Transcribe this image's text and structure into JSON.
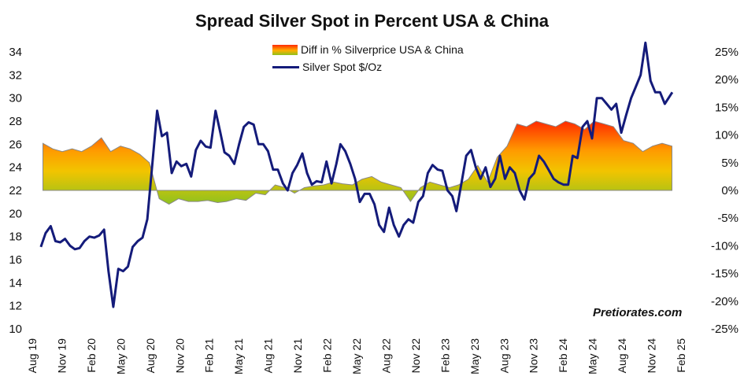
{
  "title": "Spread Silver Spot in Percent USA & China",
  "watermark": "Pretiorates.com",
  "legend": {
    "area_label": "Diff in % Silverprice USA & China",
    "line_label": "Silver Spot  $/Oz"
  },
  "colors": {
    "line": "#141b7a",
    "area_high": "#ff2a00",
    "area_mid": "#ffb000",
    "area_low": "#8ec21f",
    "area_outline": "#888888"
  },
  "chart_data": {
    "type": "line",
    "title": "Spread Silver Spot in Percent USA & China",
    "x_tick_labels": [
      "Aug 19",
      "Nov 19",
      "Feb 20",
      "May 20",
      "Aug 20",
      "Nov 20",
      "Feb 21",
      "May 21",
      "Aug 21",
      "Nov 21",
      "Feb 22",
      "May 22",
      "Aug 22",
      "Nov 22",
      "Feb 23",
      "May 23",
      "Aug 23",
      "Nov 23",
      "Feb 24",
      "May 24",
      "Aug 24",
      "Nov 24",
      "Feb 25"
    ],
    "y_left": {
      "range": [
        10,
        34
      ],
      "ticks": [
        10,
        12,
        14,
        16,
        18,
        20,
        22,
        24,
        26,
        28,
        30,
        32,
        34
      ]
    },
    "y_right": {
      "range": [
        -25,
        25
      ],
      "ticks": [
        "-25%",
        "-20%",
        "-15%",
        "-10%",
        "-5%",
        "0%",
        "5%",
        "10%",
        "15%",
        "20%",
        "25%"
      ]
    },
    "grid": false,
    "legend_position": "top-center",
    "series": [
      {
        "name": "Silver Spot  $/Oz",
        "type": "line",
        "axis": "left",
        "points": [
          [
            "2019-08",
            17.1
          ],
          [
            "2019-08",
            18.3
          ],
          [
            "2019-09",
            18.9
          ],
          [
            "2019-09",
            17.6
          ],
          [
            "2019-10",
            17.5
          ],
          [
            "2019-10",
            17.8
          ],
          [
            "2019-11",
            17.2
          ],
          [
            "2019-11",
            16.9
          ],
          [
            "2019-12",
            17.0
          ],
          [
            "2019-12",
            17.6
          ],
          [
            "2020-01",
            18.0
          ],
          [
            "2020-01",
            17.9
          ],
          [
            "2020-02",
            18.1
          ],
          [
            "2020-02",
            18.6
          ],
          [
            "2020-03",
            15.0
          ],
          [
            "2020-03",
            11.9
          ],
          [
            "2020-04",
            15.2
          ],
          [
            "2020-04",
            15.0
          ],
          [
            "2020-05",
            15.4
          ],
          [
            "2020-05",
            17.1
          ],
          [
            "2020-06",
            17.6
          ],
          [
            "2020-06",
            17.9
          ],
          [
            "2020-07",
            19.5
          ],
          [
            "2020-07",
            24.0
          ],
          [
            "2020-08",
            28.9
          ],
          [
            "2020-08",
            26.7
          ],
          [
            "2020-09",
            27.0
          ],
          [
            "2020-09",
            23.5
          ],
          [
            "2020-10",
            24.5
          ],
          [
            "2020-10",
            24.1
          ],
          [
            "2020-11",
            24.3
          ],
          [
            "2020-11",
            23.2
          ],
          [
            "2020-12",
            25.5
          ],
          [
            "2020-12",
            26.3
          ],
          [
            "2021-01",
            25.8
          ],
          [
            "2021-01",
            25.7
          ],
          [
            "2021-02",
            28.9
          ],
          [
            "2021-02",
            27.0
          ],
          [
            "2021-03",
            25.3
          ],
          [
            "2021-03",
            25.0
          ],
          [
            "2021-04",
            24.3
          ],
          [
            "2021-04",
            26.0
          ],
          [
            "2021-05",
            27.5
          ],
          [
            "2021-05",
            27.9
          ],
          [
            "2021-06",
            27.7
          ],
          [
            "2021-06",
            26.0
          ],
          [
            "2021-07",
            26.0
          ],
          [
            "2021-07",
            25.4
          ],
          [
            "2021-08",
            23.8
          ],
          [
            "2021-08",
            23.8
          ],
          [
            "2021-09",
            22.6
          ],
          [
            "2021-09",
            22.0
          ],
          [
            "2021-10",
            23.5
          ],
          [
            "2021-10",
            24.2
          ],
          [
            "2021-11",
            25.2
          ],
          [
            "2021-11",
            23.5
          ],
          [
            "2021-12",
            22.5
          ],
          [
            "2021-12",
            22.8
          ],
          [
            "2022-01",
            22.7
          ],
          [
            "2022-01",
            24.5
          ],
          [
            "2022-02",
            22.6
          ],
          [
            "2022-02",
            24.3
          ],
          [
            "2022-03",
            26.0
          ],
          [
            "2022-03",
            25.4
          ],
          [
            "2022-04",
            24.3
          ],
          [
            "2022-04",
            23.0
          ],
          [
            "2022-05",
            21.0
          ],
          [
            "2022-05",
            21.7
          ],
          [
            "2022-06",
            21.7
          ],
          [
            "2022-06",
            20.8
          ],
          [
            "2022-07",
            19.0
          ],
          [
            "2022-07",
            18.4
          ],
          [
            "2022-08",
            20.5
          ],
          [
            "2022-08",
            19.0
          ],
          [
            "2022-09",
            18.0
          ],
          [
            "2022-09",
            19.0
          ],
          [
            "2022-10",
            19.5
          ],
          [
            "2022-10",
            19.2
          ],
          [
            "2022-11",
            21.0
          ],
          [
            "2022-11",
            21.5
          ],
          [
            "2022-12",
            23.5
          ],
          [
            "2022-12",
            24.2
          ],
          [
            "2023-01",
            23.8
          ],
          [
            "2023-01",
            23.7
          ],
          [
            "2023-02",
            22.0
          ],
          [
            "2023-02",
            21.5
          ],
          [
            "2023-03",
            20.2
          ],
          [
            "2023-03",
            22.5
          ],
          [
            "2023-04",
            25.0
          ],
          [
            "2023-04",
            25.5
          ],
          [
            "2023-05",
            24.0
          ],
          [
            "2023-05",
            23.0
          ],
          [
            "2023-06",
            24.0
          ],
          [
            "2023-06",
            22.3
          ],
          [
            "2023-07",
            23.0
          ],
          [
            "2023-07",
            25.0
          ],
          [
            "2023-08",
            23.0
          ],
          [
            "2023-08",
            24.0
          ],
          [
            "2023-09",
            23.5
          ],
          [
            "2023-09",
            22.0
          ],
          [
            "2023-10",
            21.2
          ],
          [
            "2023-10",
            23.0
          ],
          [
            "2023-11",
            23.5
          ],
          [
            "2023-11",
            25.0
          ],
          [
            "2023-12",
            24.5
          ],
          [
            "2023-12",
            23.8
          ],
          [
            "2024-01",
            23.0
          ],
          [
            "2024-01",
            22.7
          ],
          [
            "2024-02",
            22.5
          ],
          [
            "2024-02",
            22.5
          ],
          [
            "2024-03",
            25.0
          ],
          [
            "2024-03",
            24.8
          ],
          [
            "2024-04",
            27.5
          ],
          [
            "2024-04",
            28.0
          ],
          [
            "2024-05",
            26.5
          ],
          [
            "2024-05",
            30.0
          ],
          [
            "2024-06",
            30.0
          ],
          [
            "2024-06",
            29.5
          ],
          [
            "2024-07",
            29.0
          ],
          [
            "2024-07",
            29.5
          ],
          [
            "2024-08",
            27.0
          ],
          [
            "2024-08",
            28.5
          ],
          [
            "2024-09",
            30.0
          ],
          [
            "2024-09",
            31.0
          ],
          [
            "2024-10",
            32.0
          ],
          [
            "2024-10",
            34.8
          ],
          [
            "2024-11",
            31.5
          ],
          [
            "2024-11",
            30.5
          ],
          [
            "2024-12",
            30.5
          ],
          [
            "2024-12",
            29.5
          ],
          [
            "2025-01",
            30.5
          ]
        ]
      },
      {
        "name": "Diff in % Silverprice USA & China",
        "type": "area",
        "axis": "right",
        "points": [
          [
            "2019-08",
            8.5
          ],
          [
            "2019-09",
            7.5
          ],
          [
            "2019-10",
            7.0
          ],
          [
            "2019-11",
            7.5
          ],
          [
            "2019-12",
            7.0
          ],
          [
            "2020-01",
            8.0
          ],
          [
            "2020-02",
            9.5
          ],
          [
            "2020-03",
            7.0
          ],
          [
            "2020-04",
            8.0
          ],
          [
            "2020-05",
            7.5
          ],
          [
            "2020-06",
            6.5
          ],
          [
            "2020-07",
            5.0
          ],
          [
            "2020-08",
            -1.5
          ],
          [
            "2020-09",
            -2.5
          ],
          [
            "2020-10",
            -1.5
          ],
          [
            "2020-11",
            -2.0
          ],
          [
            "2020-12",
            -2.0
          ],
          [
            "2021-01",
            -1.8
          ],
          [
            "2021-02",
            -2.2
          ],
          [
            "2021-03",
            -2.0
          ],
          [
            "2021-04",
            -1.5
          ],
          [
            "2021-05",
            -1.8
          ],
          [
            "2021-06",
            -0.5
          ],
          [
            "2021-07",
            -0.8
          ],
          [
            "2021-08",
            1.0
          ],
          [
            "2021-09",
            0.5
          ],
          [
            "2021-10",
            -0.5
          ],
          [
            "2021-11",
            0.5
          ],
          [
            "2021-12",
            0.8
          ],
          [
            "2022-01",
            1.0
          ],
          [
            "2022-02",
            1.5
          ],
          [
            "2022-03",
            1.2
          ],
          [
            "2022-04",
            1.0
          ],
          [
            "2022-05",
            2.0
          ],
          [
            "2022-06",
            2.5
          ],
          [
            "2022-07",
            1.5
          ],
          [
            "2022-08",
            1.0
          ],
          [
            "2022-09",
            0.5
          ],
          [
            "2022-10",
            -2.0
          ],
          [
            "2022-11",
            0.5
          ],
          [
            "2022-12",
            1.5
          ],
          [
            "2023-01",
            1.0
          ],
          [
            "2023-02",
            0.5
          ],
          [
            "2023-03",
            1.0
          ],
          [
            "2023-04",
            2.0
          ],
          [
            "2023-05",
            4.5
          ],
          [
            "2023-06",
            1.5
          ],
          [
            "2023-07",
            6.0
          ],
          [
            "2023-08",
            8.0
          ],
          [
            "2023-09",
            12.0
          ],
          [
            "2023-10",
            11.5
          ],
          [
            "2023-11",
            12.5
          ],
          [
            "2023-12",
            12.0
          ],
          [
            "2024-01",
            11.5
          ],
          [
            "2024-02",
            12.5
          ],
          [
            "2024-03",
            12.0
          ],
          [
            "2024-04",
            11.0
          ],
          [
            "2024-05",
            12.5
          ],
          [
            "2024-06",
            12.0
          ],
          [
            "2024-07",
            11.5
          ],
          [
            "2024-08",
            9.0
          ],
          [
            "2024-09",
            8.5
          ],
          [
            "2024-10",
            7.0
          ],
          [
            "2024-11",
            8.0
          ],
          [
            "2024-12",
            8.5
          ],
          [
            "2025-01",
            8.0
          ]
        ]
      }
    ]
  }
}
